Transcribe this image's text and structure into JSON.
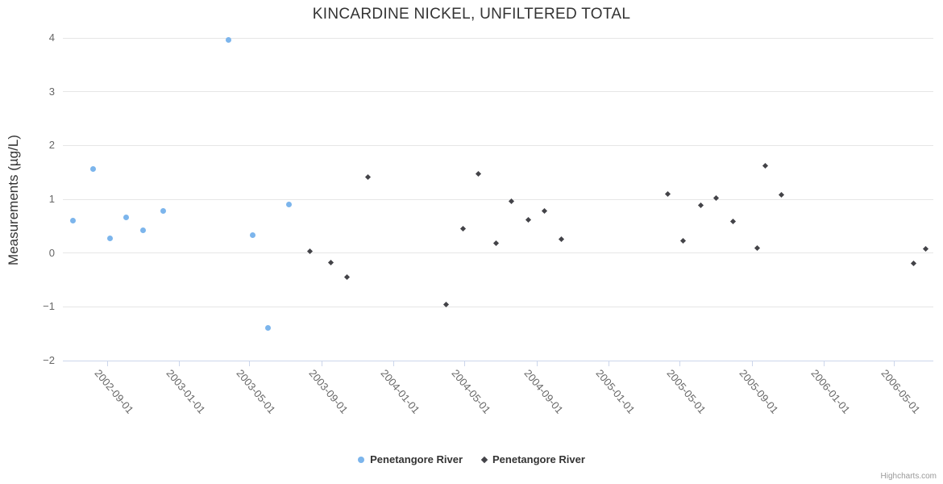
{
  "title": "KINCARDINE NICKEL, UNFILTERED TOTAL",
  "credit": "Highcharts.com",
  "chart_data": {
    "type": "scatter",
    "title": "KINCARDINE NICKEL, UNFILTERED TOTAL",
    "xlabel": "",
    "ylabel": "Measurements (µg/L)",
    "ylim": [
      -2,
      4
    ],
    "yticks": [
      4,
      3,
      2,
      1,
      0,
      -1,
      -2
    ],
    "ytick_labels": [
      "4",
      "3",
      "2",
      "1",
      "0",
      "−1",
      "−2"
    ],
    "xtick_labels": [
      "2002-09-01",
      "2003-01-01",
      "2003-05-01",
      "2003-09-01",
      "2004-01-01",
      "2004-05-01",
      "2004-09-01",
      "2005-01-01",
      "2005-05-01",
      "2005-09-01",
      "2006-01-01",
      "2006-05-01"
    ],
    "x_range": [
      "2002-06-18",
      "2006-07-07"
    ],
    "grid": "horizontal",
    "legend_position": "bottom-center",
    "series": [
      {
        "name": "Penetangore River",
        "marker": "circle",
        "color": "#7cb5ec",
        "points": [
          {
            "date": "2002-07-05",
            "value": 0.61
          },
          {
            "date": "2002-08-09",
            "value": 1.57
          },
          {
            "date": "2002-09-06",
            "value": 0.28
          },
          {
            "date": "2002-10-04",
            "value": 0.67
          },
          {
            "date": "2002-11-02",
            "value": 0.42
          },
          {
            "date": "2002-12-06",
            "value": 0.78
          },
          {
            "date": "2003-03-26",
            "value": 3.97
          },
          {
            "date": "2003-05-07",
            "value": 0.34
          },
          {
            "date": "2003-06-02",
            "value": -1.39
          },
          {
            "date": "2003-07-08",
            "value": 0.9
          }
        ]
      },
      {
        "name": "Penetangore River",
        "marker": "diamond",
        "color": "#434348",
        "points": [
          {
            "date": "2003-08-12",
            "value": 0.03
          },
          {
            "date": "2003-09-17",
            "value": -0.17
          },
          {
            "date": "2003-10-14",
            "value": -0.44
          },
          {
            "date": "2003-11-19",
            "value": 1.42
          },
          {
            "date": "2004-03-30",
            "value": -0.96
          },
          {
            "date": "2004-04-29",
            "value": 0.45
          },
          {
            "date": "2004-05-25",
            "value": 1.48
          },
          {
            "date": "2004-06-23",
            "value": 0.18
          },
          {
            "date": "2004-07-20",
            "value": 0.96
          },
          {
            "date": "2004-08-17",
            "value": 0.62
          },
          {
            "date": "2004-09-14",
            "value": 0.79
          },
          {
            "date": "2004-10-12",
            "value": 0.26
          },
          {
            "date": "2005-04-11",
            "value": 1.1
          },
          {
            "date": "2005-05-08",
            "value": 0.23
          },
          {
            "date": "2005-06-06",
            "value": 0.89
          },
          {
            "date": "2005-07-03",
            "value": 1.03
          },
          {
            "date": "2005-08-01",
            "value": 0.59
          },
          {
            "date": "2005-09-11",
            "value": 0.09
          },
          {
            "date": "2005-09-24",
            "value": 1.63
          },
          {
            "date": "2005-10-22",
            "value": 1.08
          },
          {
            "date": "2006-06-04",
            "value": -0.19
          },
          {
            "date": "2006-06-24",
            "value": 0.08
          }
        ]
      }
    ]
  }
}
